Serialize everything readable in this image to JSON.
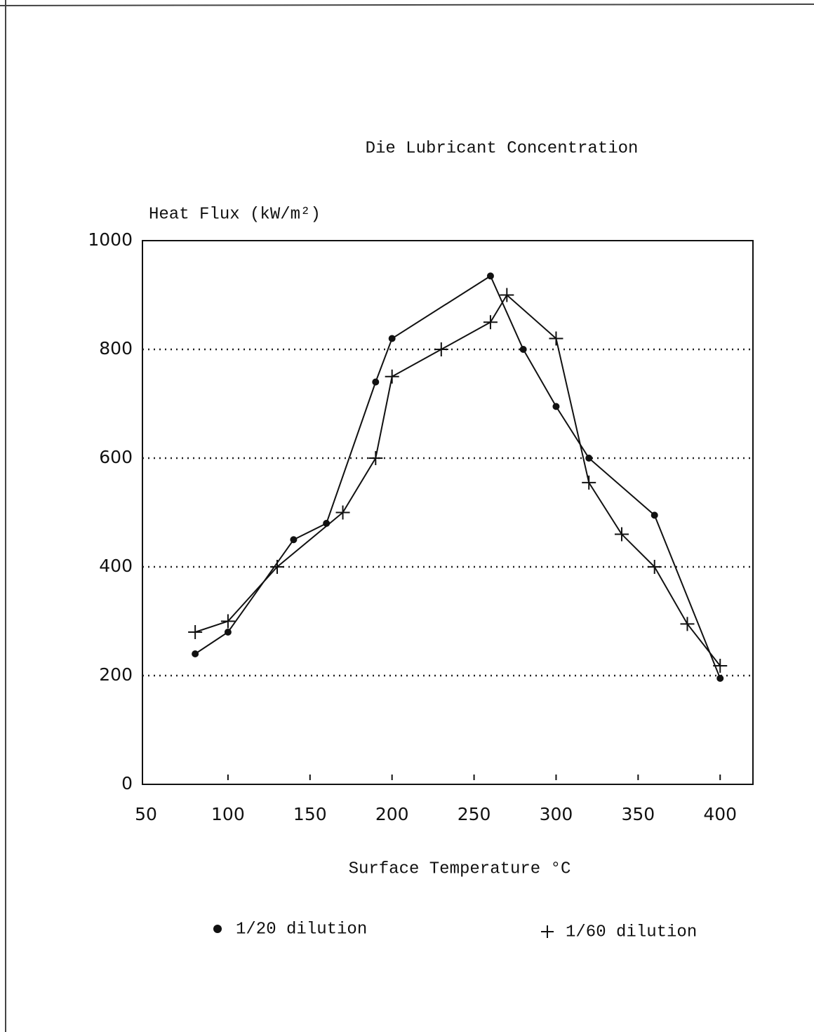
{
  "chart_data": {
    "type": "line",
    "title": "Die Lubricant Concentration",
    "y_label": "Heat Flux (kW/m²)",
    "x_label": "Surface Temperature °C",
    "series": [
      {
        "name": "1/20 dilution",
        "color": "#111111",
        "marker": "dot",
        "x": [
          80,
          100,
          140,
          160,
          190,
          200,
          260,
          280,
          300,
          320,
          360,
          400
        ],
        "values": [
          240,
          280,
          450,
          480,
          740,
          820,
          935,
          800,
          695,
          600,
          495,
          195
        ]
      },
      {
        "name": "1/60 dilution",
        "color": "#111111",
        "marker": "plus",
        "x": [
          80,
          100,
          130,
          170,
          190,
          200,
          230,
          260,
          270,
          300,
          320,
          340,
          360,
          380,
          400
        ],
        "values": [
          280,
          300,
          400,
          500,
          600,
          750,
          800,
          850,
          900,
          820,
          555,
          460,
          400,
          295,
          218
        ]
      }
    ],
    "xlim": [
      50,
      420
    ],
    "xticks": [
      50,
      100,
      150,
      200,
      250,
      300,
      350,
      400
    ],
    "ylim": [
      0,
      1000
    ],
    "yticks": [
      0,
      200,
      400,
      600,
      800,
      1000
    ],
    "grid": true
  }
}
